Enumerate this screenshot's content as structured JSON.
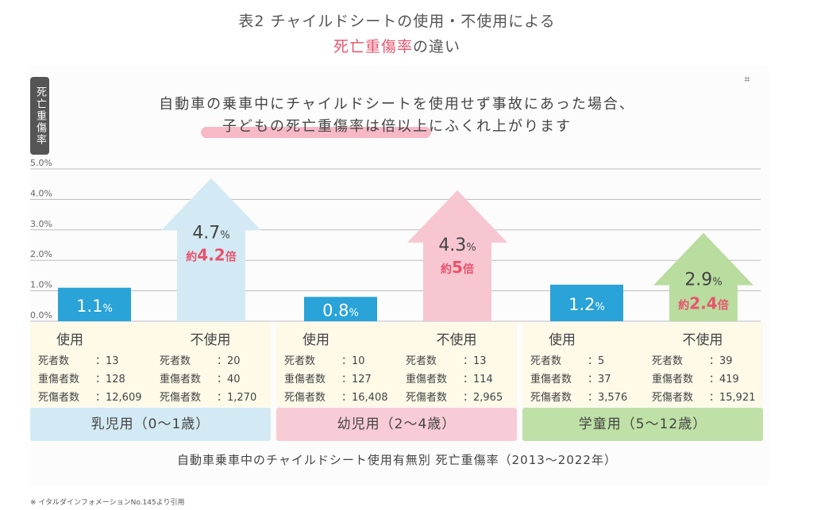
{
  "title": {
    "line1": "表2 チャイルドシートの使用・不使用による",
    "line2_highlight": "死亡重傷率",
    "line2_rest": "の違い"
  },
  "headline": {
    "line1": "自動車の乗車中にチャイルドシートを使用せず事故にあった場合、",
    "line2": "子どもの死亡重傷率は倍以上にふくれ上がります"
  },
  "y_axis_label": "死亡重傷率",
  "footer_title": "自動車乗車中のチャイルドシート使用有無別 死亡重傷率（2013〜2022年）",
  "note": "※ イタルダインフォメーションNo.145より引用",
  "icons": {
    "scan": "scan-icon"
  },
  "colors": {
    "used_bar": "#29a3d8",
    "infant_arrow": "#d3eaf4",
    "toddler_arrow": "#f7c6d1",
    "school_arrow": "#b9dc9f",
    "infant_group": "#d3eaf4",
    "toddler_group": "#f8ccd6",
    "school_group": "#bfe0a6",
    "accent": "#e8536d"
  },
  "chart_data": {
    "type": "bar",
    "ylim": [
      0,
      5
    ],
    "yticks": [
      "0.0%",
      "1.0%",
      "2.0%",
      "3.0%",
      "4.0%",
      "5.0%"
    ],
    "ylabel": "死亡重傷率",
    "categories": [
      "乳児用（0〜1歳）",
      "幼児用（2〜4歳）",
      "学童用（5〜12歳）"
    ],
    "series": [
      {
        "name": "使用",
        "values": [
          1.1,
          0.8,
          1.2
        ],
        "labels": [
          "1.1",
          "0.8",
          "1.2"
        ]
      },
      {
        "name": "不使用",
        "values": [
          4.7,
          4.3,
          2.9
        ],
        "labels": [
          "4.7",
          "4.3",
          "2.9"
        ]
      }
    ],
    "unit": "%",
    "ratios": [
      {
        "prefix": "約",
        "value": "4.2",
        "suffix": "倍"
      },
      {
        "prefix": "約",
        "value": "5",
        "suffix": "倍"
      },
      {
        "prefix": "約",
        "value": "2.4",
        "suffix": "倍"
      }
    ],
    "groups": [
      {
        "label": "乳児用（0〜1歳）",
        "used": {
          "head": "使用",
          "rows": [
            [
              "死者数",
              "：13"
            ],
            [
              "重傷者数",
              "：128"
            ],
            [
              "死傷者数",
              "：12,609"
            ]
          ]
        },
        "unused": {
          "head": "不使用",
          "rows": [
            [
              "死者数",
              "：20"
            ],
            [
              "重傷者数",
              "：40"
            ],
            [
              "死傷者数",
              "：1,270"
            ]
          ]
        }
      },
      {
        "label": "幼児用（2〜4歳）",
        "used": {
          "head": "使用",
          "rows": [
            [
              "死者数",
              "：10"
            ],
            [
              "重傷者数",
              "：127"
            ],
            [
              "死傷者数",
              "：16,408"
            ]
          ]
        },
        "unused": {
          "head": "不使用",
          "rows": [
            [
              "死者数",
              "：13"
            ],
            [
              "重傷者数",
              "：114"
            ],
            [
              "死傷者数",
              "：2,965"
            ]
          ]
        }
      },
      {
        "label": "学童用（5〜12歳）",
        "used": {
          "head": "使用",
          "rows": [
            [
              "死者数",
              "：5"
            ],
            [
              "重傷者数",
              "：37"
            ],
            [
              "死傷者数",
              "：3,576"
            ]
          ]
        },
        "unused": {
          "head": "不使用",
          "rows": [
            [
              "死者数",
              "：39"
            ],
            [
              "重傷者数",
              "：419"
            ],
            [
              "死傷者数",
              "：15,921"
            ]
          ]
        }
      }
    ]
  }
}
